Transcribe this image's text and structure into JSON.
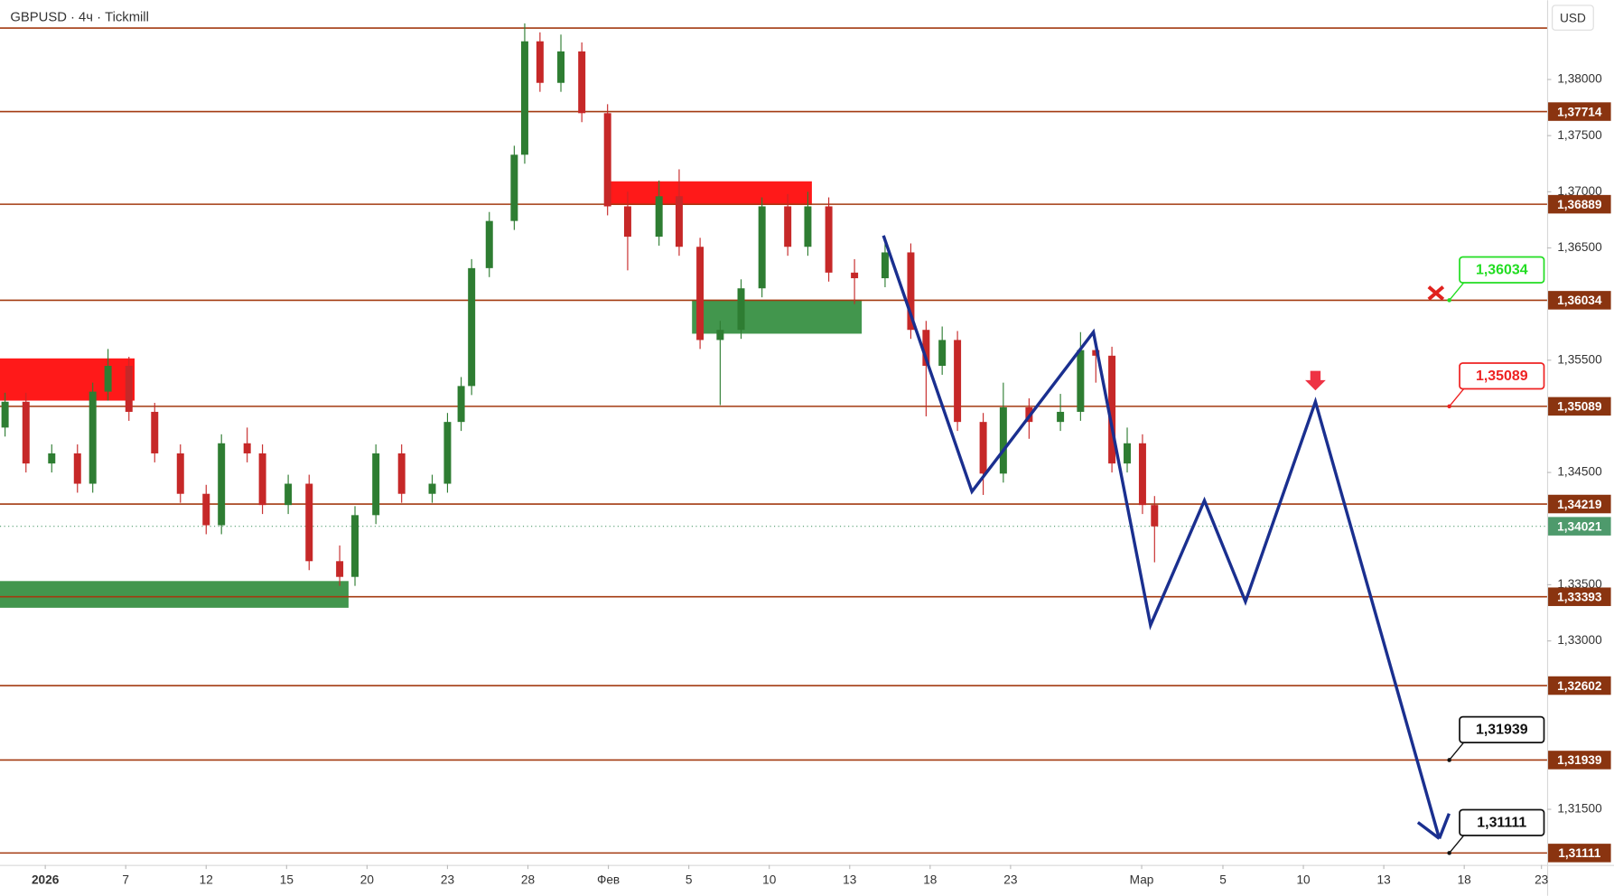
{
  "chart_data": {
    "type": "candlestick",
    "title": "GBPUSD · 4ч · Tickmill",
    "currency": "USD",
    "up_color": "#2e7d32",
    "down_color": "#c62828",
    "level_color": "#a33a10",
    "xlim": [
      -0.563,
      18.67
    ],
    "xticks": [
      {
        "value": 0,
        "label": "2026"
      },
      {
        "value": 1,
        "label": "7"
      },
      {
        "value": 2,
        "label": "12"
      },
      {
        "value": 3,
        "label": "15"
      },
      {
        "value": 4,
        "label": "20"
      },
      {
        "value": 5,
        "label": "23"
      },
      {
        "value": 6,
        "label": "28"
      },
      {
        "value": 7,
        "label": "Фев"
      },
      {
        "value": 8,
        "label": "5"
      },
      {
        "value": 9,
        "label": "10"
      },
      {
        "value": 10,
        "label": "13"
      },
      {
        "value": 11,
        "label": "18"
      },
      {
        "value": 12,
        "label": "23"
      },
      {
        "value": 13.63,
        "label": "Мар"
      },
      {
        "value": 14.64,
        "label": "5"
      },
      {
        "value": 15.64,
        "label": "10"
      },
      {
        "value": 16.64,
        "label": "13"
      },
      {
        "value": 17.64,
        "label": "18"
      },
      {
        "value": 18.6,
        "label": "23"
      }
    ],
    "ylim": [
      1.31005,
      1.38706
    ],
    "yticks": [
      {
        "value": 1.38,
        "label": "1,38000"
      },
      {
        "value": 1.375,
        "label": "1,37500"
      },
      {
        "value": 1.37,
        "label": "1,37000"
      },
      {
        "value": 1.365,
        "label": "1,36500"
      },
      {
        "value": 1.355,
        "label": "1,35500"
      },
      {
        "value": 1.345,
        "label": "1,34500"
      },
      {
        "value": 1.335,
        "label": "1,33500"
      },
      {
        "value": 1.33,
        "label": "1,33000"
      },
      {
        "value": 1.315,
        "label": "1,31500"
      }
    ],
    "x": [
      -0.5,
      -0.24,
      0.08,
      0.4,
      0.59,
      0.78,
      1.04,
      1.36,
      1.68,
      2.0,
      2.19,
      2.51,
      2.7,
      3.02,
      3.28,
      3.66,
      3.85,
      4.11,
      4.43,
      4.81,
      5.0,
      5.17,
      5.3,
      5.52,
      5.83,
      5.96,
      6.15,
      6.41,
      6.67,
      6.99,
      7.24,
      7.63,
      7.88,
      8.14,
      8.39,
      8.65,
      8.91,
      9.23,
      9.48,
      9.74,
      10.06,
      10.44,
      10.76,
      10.95,
      11.15,
      11.34,
      11.66,
      11.91,
      12.23,
      12.62,
      12.87,
      13.06,
      13.26,
      13.45,
      13.64,
      13.79
    ],
    "ohlc": [
      [
        1.349,
        1.3521,
        1.3482,
        1.3513
      ],
      [
        1.3513,
        1.3521,
        1.345,
        1.3458
      ],
      [
        1.3458,
        1.3475,
        1.345,
        1.3467
      ],
      [
        1.3467,
        1.3475,
        1.3432,
        1.344
      ],
      [
        1.344,
        1.353,
        1.3432,
        1.3522
      ],
      [
        1.3522,
        1.356,
        1.3514,
        1.3545
      ],
      [
        1.3545,
        1.3553,
        1.3496,
        1.3504
      ],
      [
        1.3504,
        1.3512,
        1.3459,
        1.3467
      ],
      [
        1.3467,
        1.3475,
        1.3423,
        1.3431
      ],
      [
        1.3431,
        1.3439,
        1.3395,
        1.3403
      ],
      [
        1.3403,
        1.3484,
        1.3395,
        1.3476
      ],
      [
        1.3476,
        1.349,
        1.3459,
        1.3467
      ],
      [
        1.3467,
        1.3475,
        1.3413,
        1.3421
      ],
      [
        1.3421,
        1.3448,
        1.3413,
        1.344
      ],
      [
        1.344,
        1.3448,
        1.3363,
        1.3371
      ],
      [
        1.3371,
        1.3385,
        1.3349,
        1.3357
      ],
      [
        1.3357,
        1.342,
        1.3349,
        1.3412
      ],
      [
        1.3412,
        1.3475,
        1.3404,
        1.3467
      ],
      [
        1.3467,
        1.3475,
        1.3423,
        1.3431
      ],
      [
        1.3431,
        1.3448,
        1.3423,
        1.344
      ],
      [
        1.344,
        1.3503,
        1.3432,
        1.3495
      ],
      [
        1.3495,
        1.3535,
        1.3487,
        1.3527
      ],
      [
        1.3527,
        1.364,
        1.3519,
        1.3632
      ],
      [
        1.3632,
        1.3682,
        1.3624,
        1.3674
      ],
      [
        1.3674,
        1.3741,
        1.3666,
        1.3733
      ],
      [
        1.3733,
        1.385,
        1.3725,
        1.3834
      ],
      [
        1.3834,
        1.3842,
        1.3789,
        1.3797
      ],
      [
        1.3797,
        1.384,
        1.3789,
        1.3825
      ],
      [
        1.3825,
        1.3833,
        1.3762,
        1.377
      ],
      [
        1.377,
        1.3778,
        1.3679,
        1.3687
      ],
      [
        1.3687,
        1.37,
        1.363,
        1.366
      ],
      [
        1.366,
        1.371,
        1.3652,
        1.3696
      ],
      [
        1.3696,
        1.372,
        1.3643,
        1.3651
      ],
      [
        1.3651,
        1.3659,
        1.356,
        1.3568
      ],
      [
        1.3568,
        1.3585,
        1.351,
        1.3577
      ],
      [
        1.3577,
        1.3622,
        1.3569,
        1.3614
      ],
      [
        1.3614,
        1.3695,
        1.3606,
        1.3687
      ],
      [
        1.3687,
        1.3698,
        1.3643,
        1.3651
      ],
      [
        1.3651,
        1.37,
        1.3643,
        1.3687
      ],
      [
        1.3687,
        1.3695,
        1.362,
        1.3628
      ],
      [
        1.3628,
        1.364,
        1.36,
        1.3623
      ],
      [
        1.3623,
        1.366,
        1.3615,
        1.3646
      ],
      [
        1.3646,
        1.3654,
        1.3569,
        1.3577
      ],
      [
        1.3577,
        1.3585,
        1.35,
        1.3545
      ],
      [
        1.3545,
        1.358,
        1.3537,
        1.3568
      ],
      [
        1.3568,
        1.3576,
        1.3487,
        1.3495
      ],
      [
        1.3495,
        1.3503,
        1.343,
        1.3449
      ],
      [
        1.3449,
        1.353,
        1.3441,
        1.3508
      ],
      [
        1.3508,
        1.3516,
        1.348,
        1.3495
      ],
      [
        1.3495,
        1.352,
        1.3487,
        1.3504
      ],
      [
        1.3504,
        1.3575,
        1.3496,
        1.3559
      ],
      [
        1.3559,
        1.3567,
        1.353,
        1.3554
      ],
      [
        1.3554,
        1.3562,
        1.345,
        1.3458
      ],
      [
        1.3458,
        1.349,
        1.345,
        1.3476
      ],
      [
        1.3476,
        1.3484,
        1.3413,
        1.3421
      ],
      [
        1.3421,
        1.3429,
        1.337,
        1.3402
      ]
    ],
    "levels": {
      "values": [
        1.38458,
        1.37714,
        1.36889,
        1.36034,
        1.35089,
        1.34219,
        1.33393,
        1.32602,
        1.31939,
        1.31111
      ],
      "value_labels": [
        null,
        "1,37714",
        "1,36889",
        "1,36034",
        "1,35089",
        "1,34219",
        "1,33393",
        "1,32602",
        "1,31939",
        "1,31111"
      ]
    },
    "current_price": {
      "value": 1.34021,
      "label": "1,34021",
      "color": "#4e9a6c"
    },
    "zones": [
      {
        "color": "#ff0000",
        "x": [
          -0.563,
          1.11
        ],
        "y": [
          1.3514,
          1.35516
        ]
      },
      {
        "color": "#2e8b3a",
        "x": [
          -0.563,
          3.77
        ],
        "y": [
          1.33295,
          1.33533
        ]
      },
      {
        "color": "#ff0000",
        "x": [
          6.99,
          9.53
        ],
        "y": [
          1.36882,
          1.37093
        ]
      },
      {
        "color": "#2e8b3a",
        "x": [
          8.04,
          10.15
        ],
        "y": [
          1.35736,
          1.36038
        ]
      }
    ],
    "projection": {
      "color": "#1a2f8f",
      "x": [
        10.42,
        11.52,
        13.03,
        13.74,
        14.41,
        14.92,
        15.79,
        17.33
      ],
      "y": [
        1.3661,
        1.3433,
        1.3575,
        1.3314,
        1.3425,
        1.3335,
        1.3513,
        1.3124
      ]
    },
    "callouts": [
      {
        "value": 1.36034,
        "label": "1,36034",
        "color": "#22dd22"
      },
      {
        "value": 1.35089,
        "label": "1,35089",
        "color": "#ee2222"
      },
      {
        "value": 1.31939,
        "label": "1,31939",
        "color": "#111111"
      },
      {
        "value": 1.31111,
        "label": "1,31111",
        "color": "#111111"
      }
    ]
  }
}
